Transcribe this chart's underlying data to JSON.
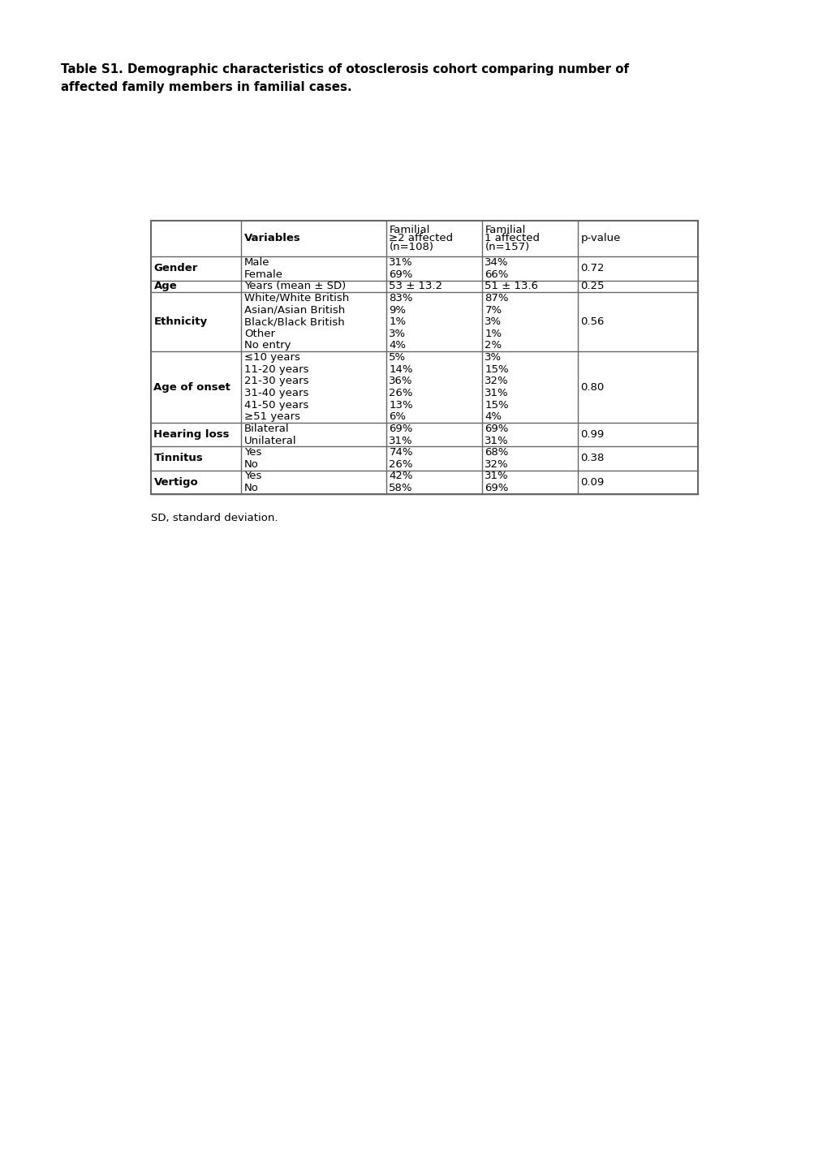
{
  "title_line1": "Table S1. Demographic characteristics of otosclerosis cohort comparing number of",
  "title_line2": "affected family members in familial cases.",
  "footnote": "SD, standard deviation.",
  "col_headers": [
    "",
    "Variables",
    "Familial\n≥2 affected\n(n=108)",
    "Familial\n1 affected\n(n=157)",
    "p-value"
  ],
  "sections": [
    {
      "label": "Gender",
      "rows": [
        [
          "Male",
          "31%",
          "34%",
          "0.72"
        ],
        [
          "Female",
          "69%",
          "66%",
          ""
        ]
      ]
    },
    {
      "label": "Age",
      "rows": [
        [
          "Years (mean ± SD)",
          "53 ± 13.2",
          "51 ± 13.6",
          "0.25"
        ]
      ]
    },
    {
      "label": "Ethnicity",
      "rows": [
        [
          "White/White British",
          "83%",
          "87%",
          "0.56"
        ],
        [
          "Asian/Asian British",
          "9%",
          "7%",
          ""
        ],
        [
          "Black/Black British",
          "1%",
          "3%",
          ""
        ],
        [
          "Other",
          "3%",
          "1%",
          ""
        ],
        [
          "No entry",
          "4%",
          "2%",
          ""
        ]
      ]
    },
    {
      "label": "Age of onset",
      "rows": [
        [
          "≤10 years",
          "5%",
          "3%",
          "0.80"
        ],
        [
          "11-20 years",
          "14%",
          "15%",
          ""
        ],
        [
          "21-30 years",
          "36%",
          "32%",
          ""
        ],
        [
          "31-40 years",
          "26%",
          "31%",
          ""
        ],
        [
          "41-50 years",
          "13%",
          "15%",
          ""
        ],
        [
          "≥51 years",
          "6%",
          "4%",
          ""
        ]
      ]
    },
    {
      "label": "Hearing loss",
      "rows": [
        [
          "Bilateral",
          "69%",
          "69%",
          "0.99"
        ],
        [
          "Unilateral",
          "31%",
          "31%",
          ""
        ]
      ]
    },
    {
      "label": "Tinnitus",
      "rows": [
        [
          "Yes",
          "74%",
          "68%",
          "0.38"
        ],
        [
          "No",
          "26%",
          "32%",
          ""
        ]
      ]
    },
    {
      "label": "Vertigo",
      "rows": [
        [
          "Yes",
          "42%",
          "31%",
          "0.09"
        ],
        [
          "No",
          "58%",
          "69%",
          ""
        ]
      ]
    }
  ],
  "background_color": "#ffffff",
  "border_color": "#666666",
  "text_color": "#000000",
  "font_size": 9.5,
  "title_font_size": 10.8
}
